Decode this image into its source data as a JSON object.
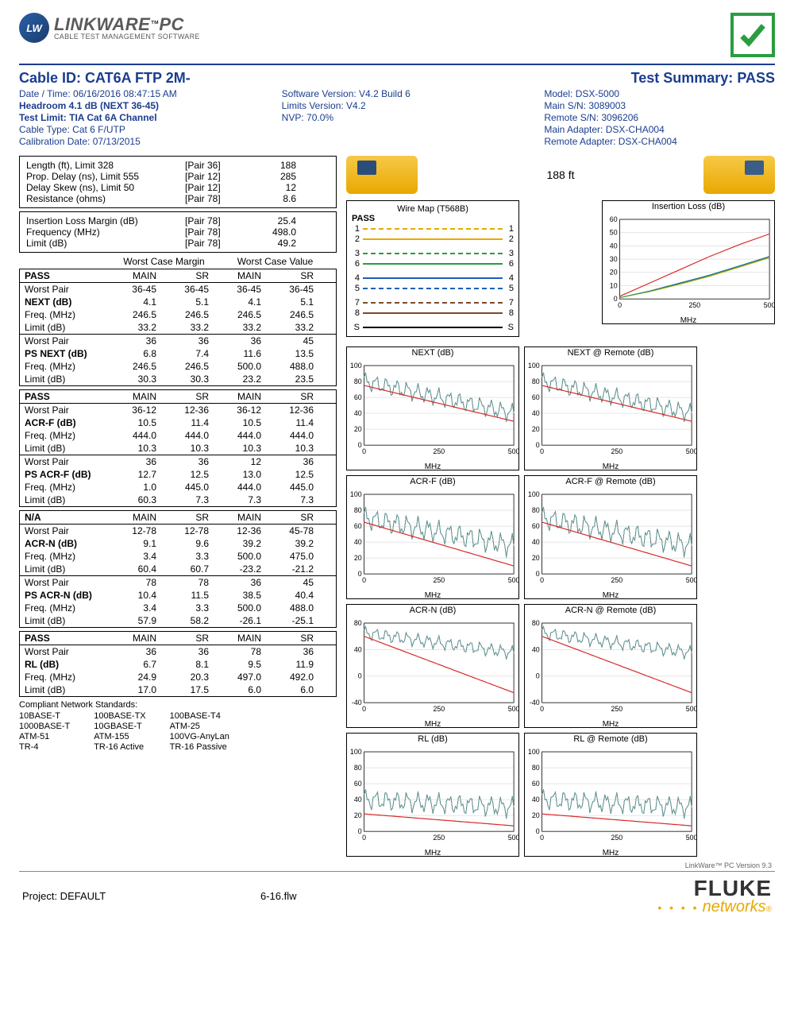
{
  "logo": {
    "badge": "LW",
    "title": "LINKWARE",
    "tm": "™",
    "pc": "PC",
    "subtitle": "CABLE TEST MANAGEMENT SOFTWARE"
  },
  "title_row": {
    "cable_id_label": "Cable ID: ",
    "cable_id": "CAT6A FTP 2M-",
    "summary_label": "Test Summary: ",
    "summary": "PASS"
  },
  "meta": {
    "col1": [
      {
        "text": "Date / Time: 06/16/2016  08:47:15 AM",
        "bold": false
      },
      {
        "text": "Headroom 4.1 dB (NEXT 36-45)",
        "bold": true
      },
      {
        "text": "Test Limit: TIA Cat 6A Channel",
        "bold": true
      },
      {
        "text": "Cable Type: Cat 6 F/UTP",
        "bold": false
      },
      {
        "text": "Calibration Date: 07/13/2015",
        "bold": false
      }
    ],
    "col2": [
      {
        "text": "Software Version: V4.2 Build 6",
        "bold": false
      },
      {
        "text": "Limits Version: V4.2",
        "bold": false
      },
      {
        "text": "NVP: 70.0%",
        "bold": false
      }
    ],
    "col3": [
      {
        "text": "Model: DSX-5000",
        "bold": false
      },
      {
        "text": "Main S/N: 3089003",
        "bold": false
      },
      {
        "text": "Remote S/N: 3096206",
        "bold": false
      },
      {
        "text": "Main Adapter: DSX-CHA004",
        "bold": false
      },
      {
        "text": "Remote Adapter: DSX-CHA004",
        "bold": false
      }
    ]
  },
  "box1": [
    {
      "label": "Length (ft), Limit 328",
      "pair": "[Pair 36]",
      "val": "188"
    },
    {
      "label": "Prop. Delay (ns), Limit 555",
      "pair": "[Pair 12]",
      "val": "285"
    },
    {
      "label": "Delay Skew (ns), Limit 50",
      "pair": "[Pair 12]",
      "val": "12"
    },
    {
      "label": "Resistance (ohms)",
      "pair": "[Pair 78]",
      "val": "8.6"
    }
  ],
  "box2": [
    {
      "label": "Insertion Loss Margin (dB)",
      "pair": "[Pair 78]",
      "val": "25.4"
    },
    {
      "label": "Frequency (MHz)",
      "pair": "[Pair 78]",
      "val": "498.0"
    },
    {
      "label": "Limit (dB)",
      "pair": "[Pair 78]",
      "val": "49.2"
    }
  ],
  "section_head": {
    "margin": "Worst Case Margin",
    "value": "Worst Case Value"
  },
  "col_heads": [
    "MAIN",
    "SR",
    "MAIN",
    "SR"
  ],
  "tables": [
    {
      "pass": "PASS",
      "groups": [
        {
          "rows": [
            {
              "name": "Worst Pair",
              "v": [
                "36-45",
                "36-45",
                "36-45",
                "36-45"
              ],
              "bold": false
            },
            {
              "name": "NEXT (dB)",
              "v": [
                "4.1",
                "5.1",
                "4.1",
                "5.1"
              ],
              "bold": true
            },
            {
              "name": "Freq. (MHz)",
              "v": [
                "246.5",
                "246.5",
                "246.5",
                "246.5"
              ],
              "bold": false
            },
            {
              "name": "Limit (dB)",
              "v": [
                "33.2",
                "33.2",
                "33.2",
                "33.2"
              ],
              "bold": false
            }
          ]
        },
        {
          "rows": [
            {
              "name": "Worst Pair",
              "v": [
                "36",
                "36",
                "36",
                "45"
              ],
              "bold": false
            },
            {
              "name": "PS NEXT (dB)",
              "v": [
                "6.8",
                "7.4",
                "11.6",
                "13.5"
              ],
              "bold": true
            },
            {
              "name": "Freq. (MHz)",
              "v": [
                "246.5",
                "246.5",
                "500.0",
                "488.0"
              ],
              "bold": false
            },
            {
              "name": "Limit (dB)",
              "v": [
                "30.3",
                "30.3",
                "23.2",
                "23.5"
              ],
              "bold": false
            }
          ]
        }
      ]
    },
    {
      "pass": "PASS",
      "groups": [
        {
          "rows": [
            {
              "name": "Worst Pair",
              "v": [
                "36-12",
                "12-36",
                "36-12",
                "12-36"
              ],
              "bold": false
            },
            {
              "name": "ACR-F (dB)",
              "v": [
                "10.5",
                "11.4",
                "10.5",
                "11.4"
              ],
              "bold": true
            },
            {
              "name": "Freq. (MHz)",
              "v": [
                "444.0",
                "444.0",
                "444.0",
                "444.0"
              ],
              "bold": false
            },
            {
              "name": "Limit (dB)",
              "v": [
                "10.3",
                "10.3",
                "10.3",
                "10.3"
              ],
              "bold": false
            }
          ]
        },
        {
          "rows": [
            {
              "name": "Worst Pair",
              "v": [
                "36",
                "36",
                "12",
                "36"
              ],
              "bold": false
            },
            {
              "name": "PS ACR-F (dB)",
              "v": [
                "12.7",
                "12.5",
                "13.0",
                "12.5"
              ],
              "bold": true
            },
            {
              "name": "Freq. (MHz)",
              "v": [
                "1.0",
                "445.0",
                "444.0",
                "445.0"
              ],
              "bold": false
            },
            {
              "name": "Limit (dB)",
              "v": [
                "60.3",
                "7.3",
                "7.3",
                "7.3"
              ],
              "bold": false
            }
          ]
        }
      ]
    },
    {
      "pass": "N/A",
      "groups": [
        {
          "rows": [
            {
              "name": "Worst Pair",
              "v": [
                "12-78",
                "12-78",
                "12-36",
                "45-78"
              ],
              "bold": false
            },
            {
              "name": "ACR-N (dB)",
              "v": [
                "9.1",
                "9.6",
                "39.2",
                "39.2"
              ],
              "bold": true
            },
            {
              "name": "Freq. (MHz)",
              "v": [
                "3.4",
                "3.3",
                "500.0",
                "475.0"
              ],
              "bold": false
            },
            {
              "name": "Limit (dB)",
              "v": [
                "60.4",
                "60.7",
                "-23.2",
                "-21.2"
              ],
              "bold": false
            }
          ]
        },
        {
          "rows": [
            {
              "name": "Worst Pair",
              "v": [
                "78",
                "78",
                "36",
                "45"
              ],
              "bold": false
            },
            {
              "name": "PS ACR-N (dB)",
              "v": [
                "10.4",
                "11.5",
                "38.5",
                "40.4"
              ],
              "bold": true
            },
            {
              "name": "Freq. (MHz)",
              "v": [
                "3.4",
                "3.3",
                "500.0",
                "488.0"
              ],
              "bold": false
            },
            {
              "name": "Limit (dB)",
              "v": [
                "57.9",
                "58.2",
                "-26.1",
                "-25.1"
              ],
              "bold": false
            }
          ]
        }
      ]
    },
    {
      "pass": "PASS",
      "groups": [
        {
          "rows": [
            {
              "name": "Worst Pair",
              "v": [
                "36",
                "36",
                "78",
                "36"
              ],
              "bold": false
            },
            {
              "name": "RL (dB)",
              "v": [
                "6.7",
                "8.1",
                "9.5",
                "11.9"
              ],
              "bold": true
            },
            {
              "name": "Freq. (MHz)",
              "v": [
                "24.9",
                "20.3",
                "497.0",
                "492.0"
              ],
              "bold": false
            },
            {
              "name": "Limit (dB)",
              "v": [
                "17.0",
                "17.5",
                "6.0",
                "6.0"
              ],
              "bold": false
            }
          ]
        }
      ]
    }
  ],
  "standards": {
    "label": "Compliant Network Standards:",
    "cols": [
      [
        "10BASE-T",
        "1000BASE-T",
        "ATM-51",
        "TR-4"
      ],
      [
        "100BASE-TX",
        "10GBASE-T",
        "ATM-155",
        "TR-16 Active"
      ],
      [
        "100BASE-T4",
        "ATM-25",
        "100VG-AnyLan",
        "TR-16 Passive"
      ]
    ]
  },
  "length_label": "188 ft",
  "wiremap": {
    "title": "Wire Map (T568B)",
    "pass": "PASS",
    "pairs": [
      {
        "l": "1",
        "r": "1",
        "color": "#e8a800",
        "dash": true
      },
      {
        "l": "2",
        "r": "2",
        "color": "#e8a800",
        "dash": false
      },
      {
        "l": "3",
        "r": "3",
        "color": "#2a9d3f",
        "dash": true
      },
      {
        "l": "6",
        "r": "6",
        "color": "#2a9d3f",
        "dash": false
      },
      {
        "l": "4",
        "r": "4",
        "color": "#1a5fb8",
        "dash": false
      },
      {
        "l": "5",
        "r": "5",
        "color": "#1a5fb8",
        "dash": true
      },
      {
        "l": "7",
        "r": "7",
        "color": "#7a4a2a",
        "dash": true
      },
      {
        "l": "8",
        "r": "8",
        "color": "#7a4a2a",
        "dash": false
      },
      {
        "l": "S",
        "r": "S",
        "color": "#000",
        "dash": false
      }
    ]
  },
  "ins_loss": {
    "title": "Insertion Loss (dB)",
    "xlim": [
      0,
      500
    ],
    "ylim": [
      0,
      60
    ],
    "xticks": [
      0,
      250,
      500
    ],
    "yticks": [
      0,
      10,
      20,
      30,
      40,
      50,
      60
    ],
    "xlabel": "MHz",
    "limit_color": "#d62728",
    "series": [
      {
        "color": "#1a5fb8",
        "pts": [
          [
            0,
            1
          ],
          [
            100,
            6
          ],
          [
            200,
            12
          ],
          [
            300,
            18
          ],
          [
            400,
            25
          ],
          [
            500,
            32
          ]
        ]
      },
      {
        "color": "#e8a800",
        "pts": [
          [
            0,
            1
          ],
          [
            100,
            5.5
          ],
          [
            200,
            11
          ],
          [
            300,
            17
          ],
          [
            400,
            24
          ],
          [
            500,
            31
          ]
        ]
      },
      {
        "color": "#2a9d3f",
        "pts": [
          [
            0,
            1
          ],
          [
            100,
            5.8
          ],
          [
            200,
            11.5
          ],
          [
            300,
            17.5
          ],
          [
            400,
            24.5
          ],
          [
            500,
            31.5
          ]
        ]
      }
    ],
    "limit_pts": [
      [
        0,
        2
      ],
      [
        100,
        12
      ],
      [
        200,
        22
      ],
      [
        300,
        32
      ],
      [
        400,
        41
      ],
      [
        500,
        49
      ]
    ]
  },
  "charts": [
    {
      "title": "NEXT (dB)",
      "xlim": [
        0,
        500
      ],
      "ylim": [
        0,
        100
      ],
      "xticks": [
        0,
        250,
        500
      ],
      "yticks": [
        0,
        20,
        40,
        60,
        80,
        100
      ],
      "xlabel": "MHz",
      "type": "spectral"
    },
    {
      "title": "NEXT @ Remote (dB)",
      "xlim": [
        0,
        500
      ],
      "ylim": [
        0,
        100
      ],
      "xticks": [
        0,
        250,
        500
      ],
      "yticks": [
        0,
        20,
        40,
        60,
        80,
        100
      ],
      "xlabel": "MHz",
      "type": "spectral"
    },
    {
      "title": "ACR-F (dB)",
      "xlim": [
        0,
        500
      ],
      "ylim": [
        0,
        100
      ],
      "xticks": [
        0,
        250,
        500
      ],
      "yticks": [
        0,
        20,
        40,
        60,
        80,
        100
      ],
      "xlabel": "MHz",
      "type": "spectral_high"
    },
    {
      "title": "ACR-F @ Remote (dB)",
      "xlim": [
        0,
        500
      ],
      "ylim": [
        0,
        100
      ],
      "xticks": [
        0,
        250,
        500
      ],
      "yticks": [
        0,
        20,
        40,
        60,
        80,
        100
      ],
      "xlabel": "MHz",
      "type": "spectral_high"
    },
    {
      "title": "ACR-N (dB)",
      "xlim": [
        0,
        500
      ],
      "ylim": [
        -40,
        80
      ],
      "xticks": [
        0,
        250,
        500
      ],
      "yticks": [
        -40,
        0,
        40,
        80
      ],
      "xlabel": "MHz",
      "type": "spectral_acrn"
    },
    {
      "title": "ACR-N @ Remote (dB)",
      "xlim": [
        0,
        500
      ],
      "ylim": [
        -40,
        80
      ],
      "xticks": [
        0,
        250,
        500
      ],
      "yticks": [
        -40,
        0,
        40,
        80
      ],
      "xlabel": "MHz",
      "type": "spectral_acrn"
    },
    {
      "title": "RL (dB)",
      "xlim": [
        0,
        500
      ],
      "ylim": [
        0,
        100
      ],
      "xticks": [
        0,
        250,
        500
      ],
      "yticks": [
        0,
        20,
        40,
        60,
        80,
        100
      ],
      "xlabel": "MHz",
      "type": "spectral_rl"
    },
    {
      "title": "RL @ Remote (dB)",
      "xlim": [
        0,
        500
      ],
      "ylim": [
        0,
        100
      ],
      "xticks": [
        0,
        250,
        500
      ],
      "yticks": [
        0,
        20,
        40,
        60,
        80,
        100
      ],
      "xlabel": "MHz",
      "type": "spectral_rl"
    }
  ],
  "chart_colors": [
    "#1a5fb8",
    "#e8a800",
    "#2a9d3f",
    "#c83cc8",
    "#7a4a2a",
    "#4aa8a8"
  ],
  "grid_color": "#cccccc",
  "limit_color": "#d62728",
  "footer": {
    "version": "LinkWare™ PC Version 9.3",
    "project": "Project: DEFAULT",
    "file": "6-16.flw",
    "fluke1": "FLUKE",
    "fluke2": "networks",
    "reg": "®"
  }
}
